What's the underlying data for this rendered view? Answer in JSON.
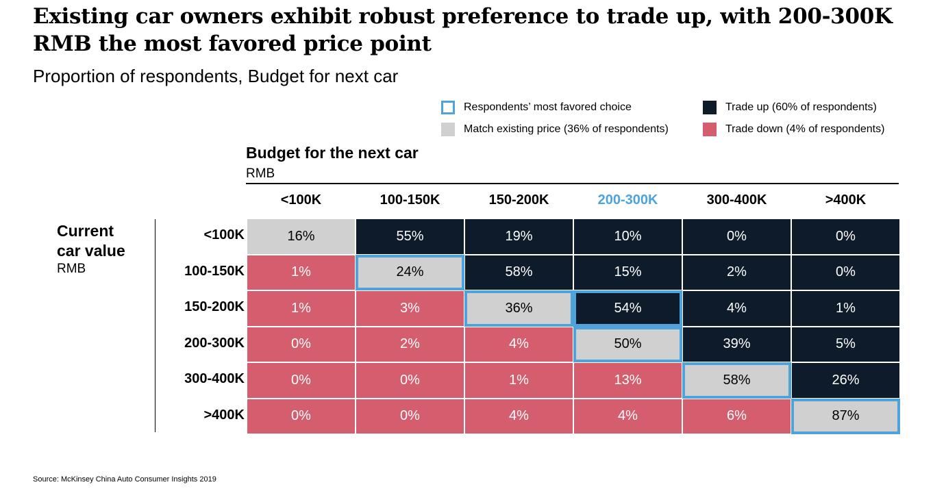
{
  "title": "Existing car owners exhibit robust preference to trade up, with 200-300K RMB the most favored price point",
  "subtitle": "Proportion of respondents, Budget for next car",
  "legend": [
    {
      "label": "Respondents’ most favored choice",
      "color": "#4ea3dd",
      "style": "outline"
    },
    {
      "label": "Trade up (60% of respondents)",
      "color": "#0d1b2a",
      "style": "fill"
    },
    {
      "label": "Match existing price (36% of respondents)",
      "color": "#d0d0d0",
      "style": "fill"
    },
    {
      "label": "Trade down (4% of respondents)",
      "color": "#d45d6e",
      "style": "fill"
    }
  ],
  "source": "Source: McKinsey China Auto Consumer Insights 2019",
  "chart_data": {
    "type": "heatmap",
    "title": "Budget for the next car",
    "xlabel": "Budget for the next car",
    "xunit": "RMB",
    "ylabel": "Current car value",
    "yunit": "RMB",
    "columns": [
      "<100K",
      "100-150K",
      "150-200K",
      "200-300K",
      "300-400K",
      ">400K"
    ],
    "highlighted_column": "200-300K",
    "rows": [
      "<100K",
      "100-150K",
      "150-200K",
      "200-300K",
      "300-400K",
      ">400K"
    ],
    "values": [
      [
        "16%",
        "55%",
        "19%",
        "10%",
        "0%",
        "0%"
      ],
      [
        "1%",
        "24%",
        "58%",
        "15%",
        "2%",
        "0%"
      ],
      [
        "1%",
        "3%",
        "36%",
        "54%",
        "4%",
        "1%"
      ],
      [
        "0%",
        "2%",
        "4%",
        "50%",
        "39%",
        "5%"
      ],
      [
        "0%",
        "0%",
        "1%",
        "13%",
        "58%",
        "26%"
      ],
      [
        "0%",
        "0%",
        "4%",
        "4%",
        "6%",
        "87%"
      ]
    ],
    "most_favored": [
      [
        1,
        1
      ],
      [
        2,
        2
      ],
      [
        2,
        3
      ],
      [
        3,
        3
      ],
      [
        4,
        4
      ],
      [
        5,
        5
      ]
    ],
    "colors": {
      "trade_up": "#0d1b2a",
      "match": "#d0d0d0",
      "trade_down": "#d45d6e",
      "favored_outline": "#4ea3dd",
      "highlight_header": "#4ea3dd"
    }
  }
}
